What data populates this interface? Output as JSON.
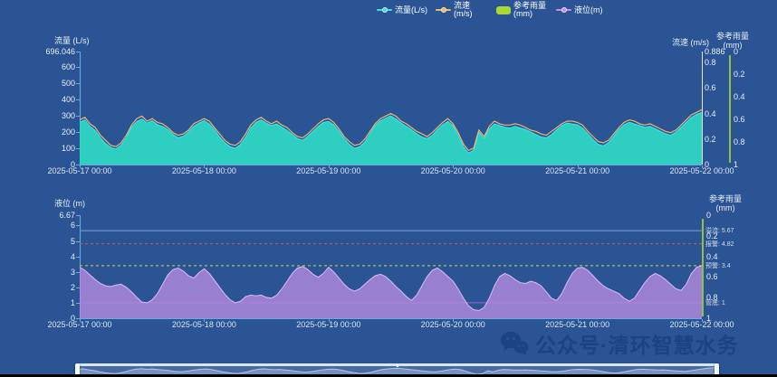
{
  "page": {
    "background": "#2b5494",
    "watermark": {
      "text": "公众号·清环智慧水务",
      "color": "#1c4382"
    }
  },
  "legend": {
    "items": [
      {
        "label": "流量(L/s)",
        "marker": "line",
        "color": "#45d9e0"
      },
      {
        "label": "流速(m/s)",
        "marker": "line",
        "color": "#f0b467"
      },
      {
        "label": "参考雨量(mm)",
        "marker": "rect",
        "color": "#a8d935"
      },
      {
        "label": "液位(m)",
        "marker": "line",
        "color": "#c490e4"
      }
    ]
  },
  "chart_data": [
    {
      "type": "area",
      "name": "flow-velocity-chart",
      "titles": {
        "left": "流量 (L/s)",
        "right1": "流速 (m/s)",
        "right2": "参考雨量(mm)"
      },
      "x_labels": [
        "2025-05-17 00:00",
        "2025-05-18 00:00",
        "2025-05-19 00:00",
        "2025-05-20 00:00",
        "2025-05-21 00:00",
        "2025-05-22 00:00"
      ],
      "x_range_hours": 120,
      "y_left": {
        "name": "流量",
        "unit": "L/s",
        "max": 696.046,
        "ticks": [
          {
            "label": "696.046",
            "value": 696.046
          },
          {
            "label": "600",
            "value": 600
          },
          {
            "label": "500",
            "value": 500
          },
          {
            "label": "400",
            "value": 400
          },
          {
            "label": "300",
            "value": 300
          },
          {
            "label": "200",
            "value": 200
          },
          {
            "label": "100",
            "value": 100
          },
          {
            "label": "0",
            "value": 0
          }
        ]
      },
      "y_right1": {
        "name": "流速",
        "unit": "m/s",
        "max": 0.886,
        "ticks": [
          {
            "label": "0.886",
            "value": 0.886
          },
          {
            "label": "0.8",
            "value": 0.8
          },
          {
            "label": "0.6",
            "value": 0.6
          },
          {
            "label": "0.4",
            "value": 0.4
          },
          {
            "label": "0.2",
            "value": 0.2
          },
          {
            "label": "0",
            "value": 0
          }
        ]
      },
      "y_right2": {
        "name": "参考雨量",
        "unit": "mm",
        "max": 1,
        "inverted": true,
        "ticks": [
          {
            "label": "0",
            "value": 0
          },
          {
            "label": "0.2",
            "value": 0.2
          },
          {
            "label": "0.4",
            "value": 0.4
          },
          {
            "label": "0.6",
            "value": 0.6
          },
          {
            "label": "0.8",
            "value": 0.8
          },
          {
            "label": "1",
            "value": 1
          }
        ]
      },
      "series": [
        {
          "name": "流量(L/s)",
          "axis": "left",
          "style": "area",
          "fill": "#2fd9c4",
          "fill_opacity": 0.92,
          "stroke": "#38e7f1",
          "values": [
            260,
            275,
            235,
            210,
            165,
            130,
            105,
            95,
            120,
            165,
            230,
            265,
            280,
            255,
            270,
            245,
            235,
            215,
            185,
            165,
            175,
            200,
            235,
            255,
            270,
            250,
            215,
            170,
            135,
            110,
            100,
            125,
            170,
            225,
            260,
            275,
            255,
            240,
            250,
            230,
            210,
            185,
            160,
            150,
            175,
            205,
            235,
            260,
            265,
            245,
            205,
            160,
            125,
            100,
            110,
            140,
            190,
            240,
            270,
            285,
            300,
            280,
            255,
            235,
            215,
            190,
            170,
            160,
            180,
            215,
            245,
            265,
            240,
            180,
            110,
            70,
            90,
            200,
            160,
            220,
            250,
            240,
            230,
            225,
            235,
            225,
            215,
            200,
            185,
            170,
            165,
            185,
            215,
            240,
            255,
            250,
            245,
            225,
            190,
            155,
            125,
            115,
            135,
            175,
            215,
            245,
            260,
            250,
            240,
            230,
            235,
            220,
            205,
            190,
            180,
            200,
            230,
            260,
            290,
            310,
            320
          ]
        },
        {
          "name": "流速(m/s)",
          "axis": "right1",
          "style": "line",
          "stroke": "#f0b467",
          "values": [
            0.35,
            0.37,
            0.32,
            0.29,
            0.23,
            0.19,
            0.15,
            0.14,
            0.17,
            0.23,
            0.31,
            0.36,
            0.38,
            0.34,
            0.36,
            0.33,
            0.32,
            0.29,
            0.25,
            0.23,
            0.24,
            0.27,
            0.32,
            0.34,
            0.36,
            0.34,
            0.29,
            0.24,
            0.19,
            0.16,
            0.15,
            0.18,
            0.24,
            0.31,
            0.35,
            0.37,
            0.34,
            0.32,
            0.34,
            0.31,
            0.29,
            0.25,
            0.22,
            0.21,
            0.24,
            0.28,
            0.32,
            0.35,
            0.36,
            0.33,
            0.28,
            0.22,
            0.18,
            0.15,
            0.16,
            0.2,
            0.26,
            0.32,
            0.36,
            0.38,
            0.4,
            0.38,
            0.34,
            0.32,
            0.29,
            0.26,
            0.24,
            0.22,
            0.25,
            0.29,
            0.33,
            0.36,
            0.32,
            0.25,
            0.16,
            0.11,
            0.13,
            0.27,
            0.22,
            0.3,
            0.34,
            0.32,
            0.31,
            0.31,
            0.32,
            0.31,
            0.29,
            0.27,
            0.26,
            0.24,
            0.23,
            0.26,
            0.29,
            0.32,
            0.34,
            0.34,
            0.33,
            0.31,
            0.26,
            0.22,
            0.18,
            0.17,
            0.19,
            0.24,
            0.29,
            0.33,
            0.35,
            0.34,
            0.32,
            0.31,
            0.32,
            0.3,
            0.28,
            0.26,
            0.25,
            0.27,
            0.31,
            0.35,
            0.39,
            0.41,
            0.43
          ]
        },
        {
          "name": "参考雨量(mm)",
          "axis": "right2",
          "style": "bar",
          "fill": "#a8d935",
          "values": []
        }
      ]
    },
    {
      "type": "area",
      "name": "level-chart",
      "titles": {
        "left": "液位 (m)",
        "right2": "参考雨量(mm)"
      },
      "x_labels": [
        "2025-05-17 00:00",
        "2025-05-18 00:00",
        "2025-05-19 00:00",
        "2025-05-20 00:00",
        "2025-05-21 00:00",
        "2025-05-22 00:00"
      ],
      "x_range_hours": 120,
      "y_left": {
        "name": "液位",
        "unit": "m",
        "max": 6.67,
        "ticks": [
          {
            "label": "6.67",
            "value": 6.67
          },
          {
            "label": "6",
            "value": 6
          },
          {
            "label": "5",
            "value": 5
          },
          {
            "label": "4",
            "value": 4
          },
          {
            "label": "3",
            "value": 3
          },
          {
            "label": "2",
            "value": 2
          },
          {
            "label": "1",
            "value": 1
          },
          {
            "label": "0",
            "value": 0
          }
        ]
      },
      "y_right2": {
        "name": "参考雨量",
        "unit": "mm",
        "max": 1,
        "inverted": true,
        "ticks": [
          {
            "label": "0",
            "value": 0
          },
          {
            "label": "0.2",
            "value": 0.2
          },
          {
            "label": "0.4",
            "value": 0.4
          },
          {
            "label": "0.6",
            "value": 0.6
          },
          {
            "label": "0.8",
            "value": 0.8
          },
          {
            "label": "1",
            "value": 1
          }
        ]
      },
      "ref_lines": [
        {
          "name": "溢流",
          "label": "溢流: 5.67",
          "value": 5.67,
          "color": "#7aa9dc",
          "dash": false
        },
        {
          "name": "报警",
          "label": "报警: 4.82",
          "value": 4.82,
          "color": "#d2554f",
          "dash": true
        },
        {
          "name": "预警",
          "label": "预警: 3.4",
          "value": 3.4,
          "color": "#cfd24e",
          "dash": true
        },
        {
          "name": "管底",
          "label": "管底: 1",
          "value": 1,
          "color": "#a05fd6",
          "dash": false
        }
      ],
      "series": [
        {
          "name": "液位(m)",
          "axis": "left",
          "style": "area",
          "fill": "#b58ade",
          "fill_opacity": 0.8,
          "stroke": "#dcb9f7",
          "values": [
            3.3,
            3.1,
            2.8,
            2.5,
            2.25,
            2.1,
            2.05,
            2.15,
            2.2,
            2.0,
            1.7,
            1.35,
            1.05,
            1.0,
            1.2,
            1.6,
            2.2,
            2.8,
            3.15,
            3.25,
            3.05,
            2.75,
            2.6,
            2.95,
            3.2,
            2.9,
            2.45,
            2.0,
            1.55,
            1.2,
            1.0,
            1.1,
            1.4,
            1.5,
            1.45,
            1.5,
            1.35,
            1.3,
            1.5,
            1.9,
            2.4,
            2.9,
            3.25,
            3.35,
            3.15,
            2.85,
            2.65,
            2.9,
            3.3,
            3.0,
            2.6,
            2.2,
            1.9,
            1.75,
            1.9,
            2.2,
            2.5,
            2.75,
            2.85,
            2.7,
            2.4,
            2.05,
            1.75,
            1.4,
            1.15,
            1.5,
            2.1,
            2.7,
            3.1,
            3.25,
            3.0,
            2.7,
            2.4,
            1.9,
            1.3,
            0.8,
            0.55,
            0.5,
            0.7,
            1.3,
            2.1,
            2.7,
            2.9,
            2.75,
            2.5,
            2.3,
            2.25,
            2.4,
            2.3,
            2.1,
            1.7,
            1.3,
            1.15,
            1.6,
            2.3,
            2.9,
            3.25,
            3.3,
            3.1,
            2.75,
            2.4,
            2.1,
            1.9,
            1.75,
            1.6,
            1.3,
            1.1,
            1.3,
            1.8,
            2.3,
            2.7,
            2.9,
            2.75,
            2.5,
            2.2,
            1.9,
            1.8,
            2.2,
            2.9,
            3.3,
            3.4
          ]
        },
        {
          "name": "参考雨量(mm)",
          "axis": "right2",
          "style": "bar",
          "fill": "#a8d935",
          "values": []
        }
      ]
    }
  ],
  "datazoom": {
    "range_start": "2025-05-17 00:00",
    "range_end": "2025-05-22 00:00"
  }
}
